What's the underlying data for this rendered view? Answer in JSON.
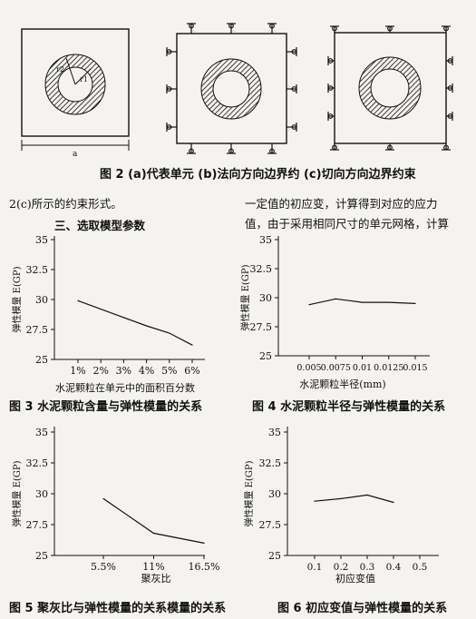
{
  "figure2": {
    "caption": "图 2  (a)代表单元  (b)法向方向边界约  (c)切向方向边界约束",
    "label_a": "a",
    "label_r1": "r1",
    "label_r2": "r2"
  },
  "text": {
    "left_line": "2(c)所示的约束形式。",
    "section_heading": "三、选取模型参数",
    "right_line1": "一定值的初应变，计算得到对应的应力",
    "right_line2": "值，由于采用相同尺寸的单元网格，计算"
  },
  "colors": {
    "ink": "#111111",
    "paper": "#f4f3ef"
  },
  "chart_data": [
    {
      "type": "line",
      "x": [
        "1%",
        "2%",
        "3%",
        "4%",
        "5%",
        "6%"
      ],
      "values": [
        29.9,
        29.2,
        28.5,
        27.8,
        27.2,
        26.2
      ],
      "yticks": [
        "35",
        "32.5",
        "30",
        "27.5",
        "25"
      ],
      "ylim": [
        25,
        35
      ],
      "ylabel": "弹性模量 E(GP)",
      "xlabel": "水泥颗粒在单元中的面积百分数",
      "caption": "图 3  水泥颗粒含量与弹性模量的关系"
    },
    {
      "type": "line",
      "x": [
        "0.005",
        "0.0075",
        "0.01",
        "0.0125",
        "0.015"
      ],
      "values": [
        29.4,
        29.9,
        29.6,
        29.6,
        29.5
      ],
      "yticks": [
        "35",
        "32.5",
        "30",
        "27.5",
        "25"
      ],
      "ylim": [
        25,
        35
      ],
      "ylabel": "弹性模量 E(GP)",
      "xlabel": "水泥颗粒半径(mm)",
      "caption": "图 4  水泥颗粒半径与弹性模量的关系"
    },
    {
      "type": "line",
      "x": [
        "5.5%",
        "11%",
        "16.5%"
      ],
      "values": [
        29.6,
        26.8,
        26.0
      ],
      "yticks": [
        "35",
        "32.5",
        "30",
        "27.5",
        "25"
      ],
      "ylim": [
        25,
        35
      ],
      "ylabel": "弹性模量 E(GP)",
      "xlabel": "聚灰比",
      "caption": "图 5  聚灰比与弹性模量的关系模量的关系"
    },
    {
      "type": "line",
      "x": [
        0.1,
        0.2,
        0.3,
        0.4
      ],
      "values": [
        29.4,
        29.6,
        29.9,
        29.3
      ],
      "xticks": [
        "0.1",
        "0.2",
        "0.3",
        "0.4",
        "0.5"
      ],
      "yticks": [
        "35",
        "32.5",
        "30",
        "27.5",
        "25"
      ],
      "ylim": [
        25,
        35
      ],
      "ylabel": "弹性模量 E(GP)",
      "xlabel": "初应变值",
      "caption": "图 6  初应变值与弹性模量的关系"
    }
  ]
}
